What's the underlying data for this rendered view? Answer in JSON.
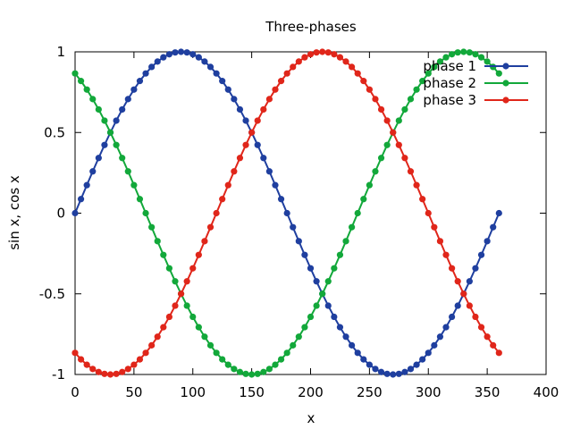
{
  "chart_data": {
    "type": "line",
    "title": "Three-phases",
    "xlabel": "x",
    "ylabel": "sin x, cos x",
    "xlim": [
      0,
      400
    ],
    "ylim": [
      -1,
      1
    ],
    "xticks": [
      0,
      50,
      100,
      150,
      200,
      250,
      300,
      350,
      400
    ],
    "yticks": [
      -1,
      -0.5,
      0,
      0.5,
      1
    ],
    "grid": false,
    "legend_position": "top-right",
    "x_sampling": {
      "start": 0,
      "end": 360,
      "step": 5
    },
    "series": [
      {
        "name": "phase 1",
        "color": "#1f3f9f",
        "function": "sin(x)",
        "phase_deg": 0
      },
      {
        "name": "phase 2",
        "color": "#12a83a",
        "function": "sin(x + 120deg)",
        "phase_deg": 120
      },
      {
        "name": "phase 3",
        "color": "#e0261a",
        "function": "sin(x + 240deg)",
        "phase_deg": 240
      }
    ]
  }
}
